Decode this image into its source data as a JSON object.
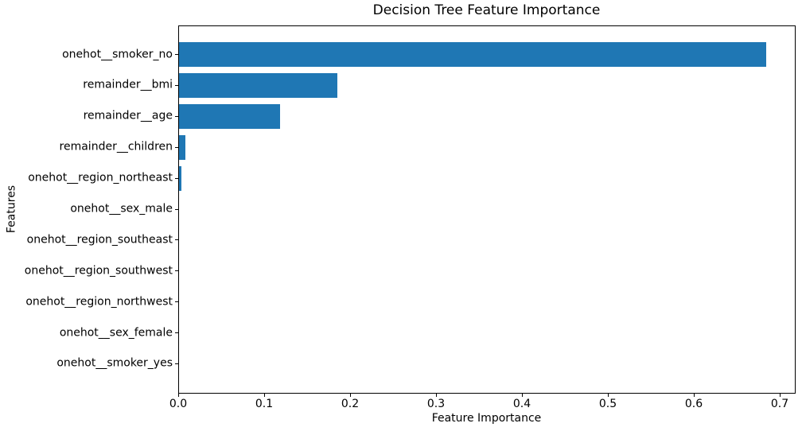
{
  "chart_data": {
    "type": "bar",
    "orientation": "horizontal",
    "title": "Decision Tree Feature Importance",
    "xlabel": "Feature Importance",
    "ylabel": "Features",
    "categories": [
      "onehot__smoker_no",
      "remainder__bmi",
      "remainder__age",
      "remainder__children",
      "onehot__region_northeast",
      "onehot__sex_male",
      "onehot__region_southeast",
      "onehot__region_southwest",
      "onehot__region_northwest",
      "onehot__sex_female",
      "onehot__smoker_yes"
    ],
    "values": [
      0.683,
      0.184,
      0.118,
      0.007,
      0.003,
      0.0,
      0.0,
      0.0,
      0.0,
      0.0,
      0.0
    ],
    "x_ticks": [
      0.0,
      0.1,
      0.2,
      0.3,
      0.4,
      0.5,
      0.6,
      0.7
    ],
    "x_tick_labels": [
      "0.0",
      "0.1",
      "0.2",
      "0.3",
      "0.4",
      "0.5",
      "0.6",
      "0.7"
    ],
    "xlim": [
      0,
      0.7176
    ],
    "bar_color": "#1f77b4",
    "background_color": "#ffffff",
    "text_color": "#000000",
    "grid": false,
    "legend": null
  }
}
